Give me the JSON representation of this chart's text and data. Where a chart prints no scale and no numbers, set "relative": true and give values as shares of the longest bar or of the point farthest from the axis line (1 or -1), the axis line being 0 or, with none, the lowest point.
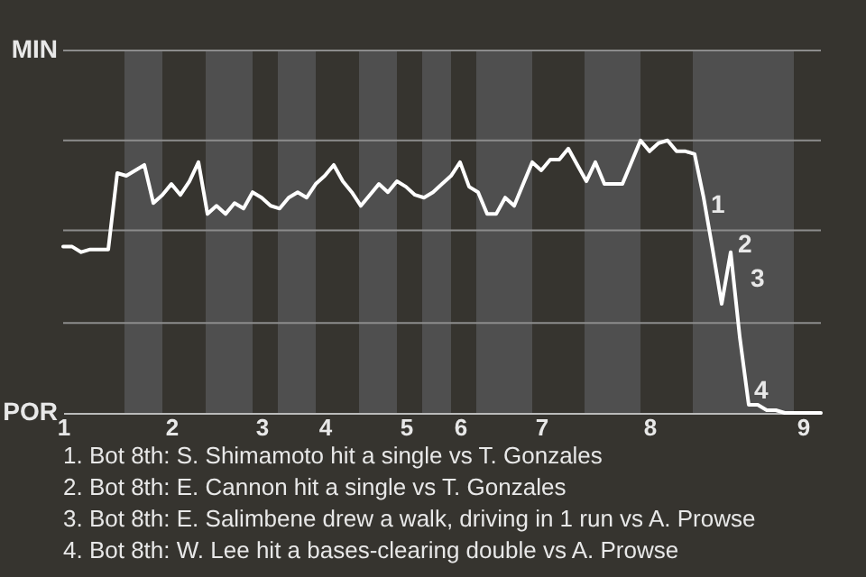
{
  "chart_data": {
    "type": "line",
    "relative": true,
    "categories": [
      "1",
      null,
      null,
      null,
      null,
      null,
      null,
      null,
      null,
      null,
      null,
      null,
      "2",
      null,
      null,
      null,
      null,
      null,
      null,
      null,
      null,
      null,
      "3",
      null,
      null,
      null,
      null,
      null,
      null,
      "4",
      null,
      null,
      null,
      null,
      null,
      null,
      null,
      null,
      "5",
      null,
      null,
      null,
      null,
      null,
      "6",
      null,
      null,
      null,
      null,
      null,
      null,
      null,
      null,
      "7",
      null,
      null,
      null,
      null,
      null,
      null,
      null,
      null,
      null,
      null,
      null,
      "8",
      null,
      null,
      null,
      null,
      null,
      null,
      null,
      null,
      null,
      null,
      null,
      null,
      null,
      null,
      null,
      null,
      "9",
      null,
      null
    ],
    "series": [
      {
        "color": "#ffffff",
        "values": [
          0.61,
          0.61,
          0.59,
          0.6,
          0.6,
          0.6,
          0.88,
          0.87,
          0.89,
          0.91,
          0.77,
          0.8,
          0.84,
          0.8,
          0.85,
          0.92,
          0.73,
          0.76,
          0.73,
          0.77,
          0.75,
          0.81,
          0.79,
          0.76,
          0.75,
          0.79,
          0.81,
          0.79,
          0.84,
          0.87,
          0.91,
          0.85,
          0.81,
          0.76,
          0.8,
          0.84,
          0.81,
          0.85,
          0.83,
          0.8,
          0.79,
          0.81,
          0.84,
          0.87,
          0.92,
          0.83,
          0.81,
          0.73,
          0.73,
          0.79,
          0.76,
          0.84,
          0.92,
          0.89,
          0.93,
          0.93,
          0.97,
          0.91,
          0.85,
          0.92,
          0.84,
          0.84,
          0.84,
          0.92,
          1,
          0.96,
          0.99,
          1,
          0.96,
          0.96,
          0.95,
          0.79,
          0.6,
          0.4,
          0.59,
          0.28,
          0.03,
          0.03,
          0.01,
          0.01,
          0,
          0,
          0,
          0,
          0
        ]
      }
    ],
    "marker": "none",
    "ref_lines": [
      {
        "axis": "y",
        "value": 0.33,
        "color": "#8c8c8c"
      },
      {
        "axis": "y",
        "value": 0.67,
        "color": "#8c8c8c"
      },
      {
        "axis": "y",
        "value": 1,
        "color": "#8c8c8c"
      },
      {
        "axis": "y",
        "value": 1.33,
        "color": "#8c8c8c"
      }
    ],
    "annotations": [
      "MIN",
      "POR",
      "1",
      "2",
      "3",
      "4",
      "1. Bot 8th: S. Shimamoto hit a single vs T. Gonzales",
      "2. Bot 8th: E. Cannon hit a single vs T. Gonzales",
      "3. Bot 8th: E. Salimbene drew a walk, driving in 1 run vs A. Prowse",
      "4. Bot 8th: W. Lee hit a bases-clearing double vs A. Prowse"
    ]
  }
}
